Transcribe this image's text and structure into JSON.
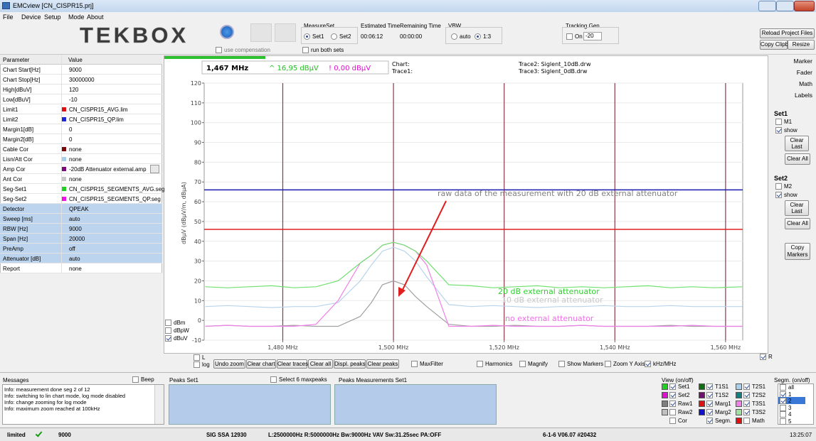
{
  "window": {
    "title": "EMCview [CN_CISPR15.prj]"
  },
  "menu": [
    "File",
    "Device",
    "Setup",
    "Mode",
    "About"
  ],
  "toolbar": {
    "logo": "TEKBOX",
    "use_compensation": {
      "label": "use compensation",
      "checked": false
    },
    "measureset": {
      "label": "MeasureSet",
      "options": [
        "Set1",
        "Set2"
      ],
      "selected": 0,
      "run_both": {
        "label": "run both sets",
        "checked": false
      }
    },
    "estimated": {
      "label": "Estimated Time",
      "value": "00:06:12"
    },
    "remaining": {
      "label": "Remaining Time",
      "value": "00:00:00"
    },
    "vbw": {
      "label": "VBW",
      "options": [
        "auto",
        "1:3"
      ],
      "selected": 1
    },
    "tracking": {
      "label": "Tracking Gen",
      "on": {
        "label": "On",
        "checked": false
      },
      "value": "-20"
    },
    "buttons": [
      "Reload Project Files",
      "Copy Clipbd",
      "Resize"
    ]
  },
  "parameters": {
    "header": [
      "Parameter",
      "Value"
    ],
    "rows": [
      {
        "name": "Chart Start[Hz]",
        "value": "9000"
      },
      {
        "name": "Chart Stop[Hz]",
        "value": "30000000"
      },
      {
        "name": "High[dBuV]",
        "value": "120"
      },
      {
        "name": "Low[dBuV]",
        "value": "-10"
      },
      {
        "name": "Limit1",
        "value": "CN_CISPR15_AVG.lim",
        "color": "#e01010"
      },
      {
        "name": "Limit2",
        "value": "CN_CISPR15_QP.lim",
        "color": "#1a2ad0"
      },
      {
        "name": "Margin1[dB]",
        "value": "0"
      },
      {
        "name": "Margin2[dB]",
        "value": "0"
      },
      {
        "name": "Cable Cor",
        "value": "none",
        "color": "#7a0a0a"
      },
      {
        "name": "Lisn/Att Cor",
        "value": "none",
        "color": "#a8d0ec"
      },
      {
        "name": "Amp Cor",
        "value": "-20dB Attenuator external.amp",
        "color": "#7a0a7a"
      },
      {
        "name": "Ant Cor",
        "value": "none",
        "color": "#c8c8c8"
      },
      {
        "name": "Seg-Set1",
        "value": "CN_CISPR15_SEGMENTS_AVG.seg",
        "color": "#20d020"
      },
      {
        "name": "Seg-Set2",
        "value": "CN_CISPR15_SEGMENTS_QP.seg",
        "color": "#f010e0"
      }
    ],
    "detector_rows": [
      {
        "name": "Detector",
        "value": "QPEAK"
      },
      {
        "name": "Sweep [ms]",
        "value": "auto"
      },
      {
        "name": "RBW [Hz]",
        "value": "9000"
      },
      {
        "name": "Span [Hz]",
        "value": "20000"
      },
      {
        "name": "PreAmp",
        "value": "off"
      },
      {
        "name": "Attenuator [dB]",
        "value": "auto"
      }
    ],
    "report": {
      "name": "Report",
      "value": "none"
    }
  },
  "chart": {
    "type": "line",
    "ylabel": "dBµV (dBµV/m, dBµA)",
    "readouts": {
      "freq": "1,467 MHz",
      "trace_a": "^ 16,95 dBµV",
      "trace_b": "! 0,00 dBµV",
      "chart": "Chart:",
      "trace1": "Trace1:",
      "trace2": "Trace2: Siglent_10dB.drw",
      "trace3": "Trace3: Siglent_0dB.drw"
    },
    "readout_colors": {
      "trace_a": "#20c020",
      "trace_b": "#e010d0"
    },
    "xlim": [
      1465.8,
      1563.1
    ],
    "ylim": [
      -10,
      120
    ],
    "yticks": [
      120,
      110,
      100,
      90,
      80,
      70,
      60,
      50,
      40,
      30,
      20,
      10,
      0,
      -10
    ],
    "xticks": [
      {
        "value": 1480,
        "label": "1,480 MHz"
      },
      {
        "value": 1500,
        "label": "1,500 MHz"
      },
      {
        "value": 1520,
        "label": "1,520 MHz"
      },
      {
        "value": 1540,
        "label": "1,540 MHz"
      },
      {
        "value": 1560,
        "label": "1,560 MHz"
      }
    ],
    "grid": true,
    "grid_color": "#8a3a4a",
    "hlines": [
      {
        "value": 66,
        "color": "#1a1ab0"
      },
      {
        "value": 46,
        "color": "#e02020"
      }
    ],
    "x": [
      1466,
      1470,
      1474,
      1478,
      1482,
      1486,
      1490,
      1494,
      1496,
      1498,
      1500,
      1502,
      1504,
      1506,
      1510,
      1514,
      1518,
      1522,
      1526,
      1530,
      1534,
      1538,
      1542,
      1546,
      1550,
      1554,
      1558,
      1563
    ],
    "series": [
      {
        "color": "#b8d4ec",
        "values": [
          7,
          7.5,
          7,
          6.5,
          7,
          7,
          9,
          20,
          28,
          35,
          37,
          35,
          30,
          22,
          8,
          7,
          7.5,
          7,
          6.5,
          7,
          7,
          7.5,
          7,
          7,
          7.5,
          7,
          7,
          7
        ]
      },
      {
        "color": "#a0a0a0",
        "values": [
          -3,
          -2.5,
          -3,
          -3,
          -2.5,
          -3,
          -3,
          2,
          9,
          18,
          20,
          18,
          12,
          7,
          -2,
          -3,
          -3,
          -2.5,
          -3,
          -3,
          -2.5,
          -3,
          -3,
          -3,
          -2.5,
          -3,
          -3,
          -3
        ]
      },
      {
        "color": "#f080e8",
        "values": [
          -3,
          -2.5,
          -3,
          -3,
          -3,
          -2,
          10,
          29,
          33,
          38,
          39.5,
          38,
          35,
          28,
          -3,
          -3,
          -2.5,
          -3,
          -3,
          -3,
          -2.5,
          -3,
          -3,
          -3,
          -3,
          -2.5,
          -3,
          -3
        ]
      },
      {
        "color": "#70e070",
        "values": [
          17,
          16.5,
          17,
          17.5,
          16.5,
          17,
          20,
          29,
          33,
          38,
          39.5,
          38,
          35,
          30,
          18,
          17.5,
          16.5,
          17,
          17.5,
          16.5,
          17,
          16.5,
          17,
          17.5,
          16.5,
          17,
          16.5,
          17
        ]
      }
    ],
    "annotations": [
      {
        "text": "raw data of the measurement with 20 dB external attenuator",
        "color": "#808080"
      },
      {
        "text": "20 dB external attenuator",
        "color": "#30d030"
      },
      {
        "text": "10 dB external attenuator",
        "color": "#c8c8c8"
      },
      {
        "text": "no external attenuator",
        "color": "#f070e8"
      }
    ],
    "arrow_color": "#e02020",
    "units": [
      {
        "label": "dBm",
        "checked": false
      },
      {
        "label": "dBpW",
        "checked": false
      },
      {
        "label": "dBuV",
        "checked": true
      }
    ]
  },
  "chart_controls": {
    "l": {
      "label": "L",
      "checked": false
    },
    "log": {
      "label": "log",
      "checked": false
    },
    "buttons": [
      "Undo zoom",
      "Clear chart",
      "Clear traces",
      "Clear all",
      "Displ. peaks",
      "Clear peaks"
    ],
    "options": [
      {
        "label": "MaxFilter",
        "checked": false
      },
      {
        "label": "Harmonics",
        "checked": false
      },
      {
        "label": "Magnify",
        "checked": false
      },
      {
        "label": "Show Markers",
        "checked": false
      },
      {
        "label": "Zoom Y Axis",
        "checked": false
      },
      {
        "label": "kHz/MHz",
        "checked": true
      }
    ],
    "r": {
      "label": "R",
      "checked": true
    }
  },
  "side_panel": {
    "tabs": [
      "Marker",
      "Fader",
      "Math",
      "Labels"
    ],
    "set1": {
      "title": "Set1",
      "marker": {
        "label": "M1",
        "checked": false
      },
      "show": {
        "label": "show",
        "checked": true
      },
      "clear_last": "Clear Last",
      "clear_all": "Clear All"
    },
    "set2": {
      "title": "Set2",
      "marker": {
        "label": "M2",
        "checked": false
      },
      "show": {
        "label": "show",
        "checked": true
      },
      "clear_last": "Clear Last",
      "clear_all": "Clear All"
    },
    "copy_markers": "Copy Markers"
  },
  "messages": {
    "title": "Messages",
    "beep": {
      "label": "Beep",
      "checked": false
    },
    "lines": [
      "Info: measurement done  seg 2 of 12",
      "Info: switching to lin chart mode, log mode disabled",
      "Info: change zooming for log mode",
      "Info: maximum zoom reached at 100kHz"
    ]
  },
  "peaks": {
    "set1": "Peaks Set1",
    "select": {
      "label": "Select 6 maxpeaks",
      "checked": false
    },
    "measurements": "Peaks Measurements Set1"
  },
  "view": {
    "title": "View (on/off)",
    "items": [
      {
        "label": "Set1",
        "color": "#20d020",
        "checked": true
      },
      {
        "label": "T1S1",
        "color": "#107010",
        "checked": true
      },
      {
        "label": "T2S1",
        "color": "#a8d0ec",
        "checked": true
      },
      {
        "label": "Set2",
        "color": "#e010d0",
        "checked": true
      },
      {
        "label": "T1S2",
        "color": "#701070",
        "checked": true
      },
      {
        "label": "T2S2",
        "color": "#108080",
        "checked": true
      },
      {
        "label": "Raw1",
        "color": "#808080",
        "checked": true
      },
      {
        "label": "Marg1",
        "color": "#e01010",
        "checked": true
      },
      {
        "label": "T3S1",
        "color": "#f080e8",
        "checked": true
      },
      {
        "label": "Raw2",
        "color": "#c0c0c0",
        "checked": false
      },
      {
        "label": "Marg2",
        "color": "#1010d0",
        "checked": true
      },
      {
        "label": "T3S2",
        "color": "#a0e0a0",
        "checked": true
      },
      {
        "label": "Cor",
        "checked": false
      },
      {
        "label": "Segm.",
        "checked": true
      },
      {
        "label": "Math",
        "color": "#e01010",
        "checked": false
      }
    ]
  },
  "segments": {
    "title": "Segm. (on/off)",
    "items": [
      {
        "label": "all",
        "checked": false
      },
      {
        "label": "1",
        "checked": true
      },
      {
        "label": "2",
        "checked": true
      },
      {
        "label": "3",
        "checked": false
      },
      {
        "label": "4",
        "checked": false
      },
      {
        "label": "5",
        "checked": false
      }
    ]
  },
  "status": {
    "mode": "limited",
    "freq": "9000",
    "device": "SIG SSA 12930",
    "settings": "L:2500000Hz R:5000000Hz Bw:9000Hz VAV Sw:31.25sec PA:OFF",
    "version": "6-1-6 V06.07 #20432",
    "time": "13:25:07"
  }
}
